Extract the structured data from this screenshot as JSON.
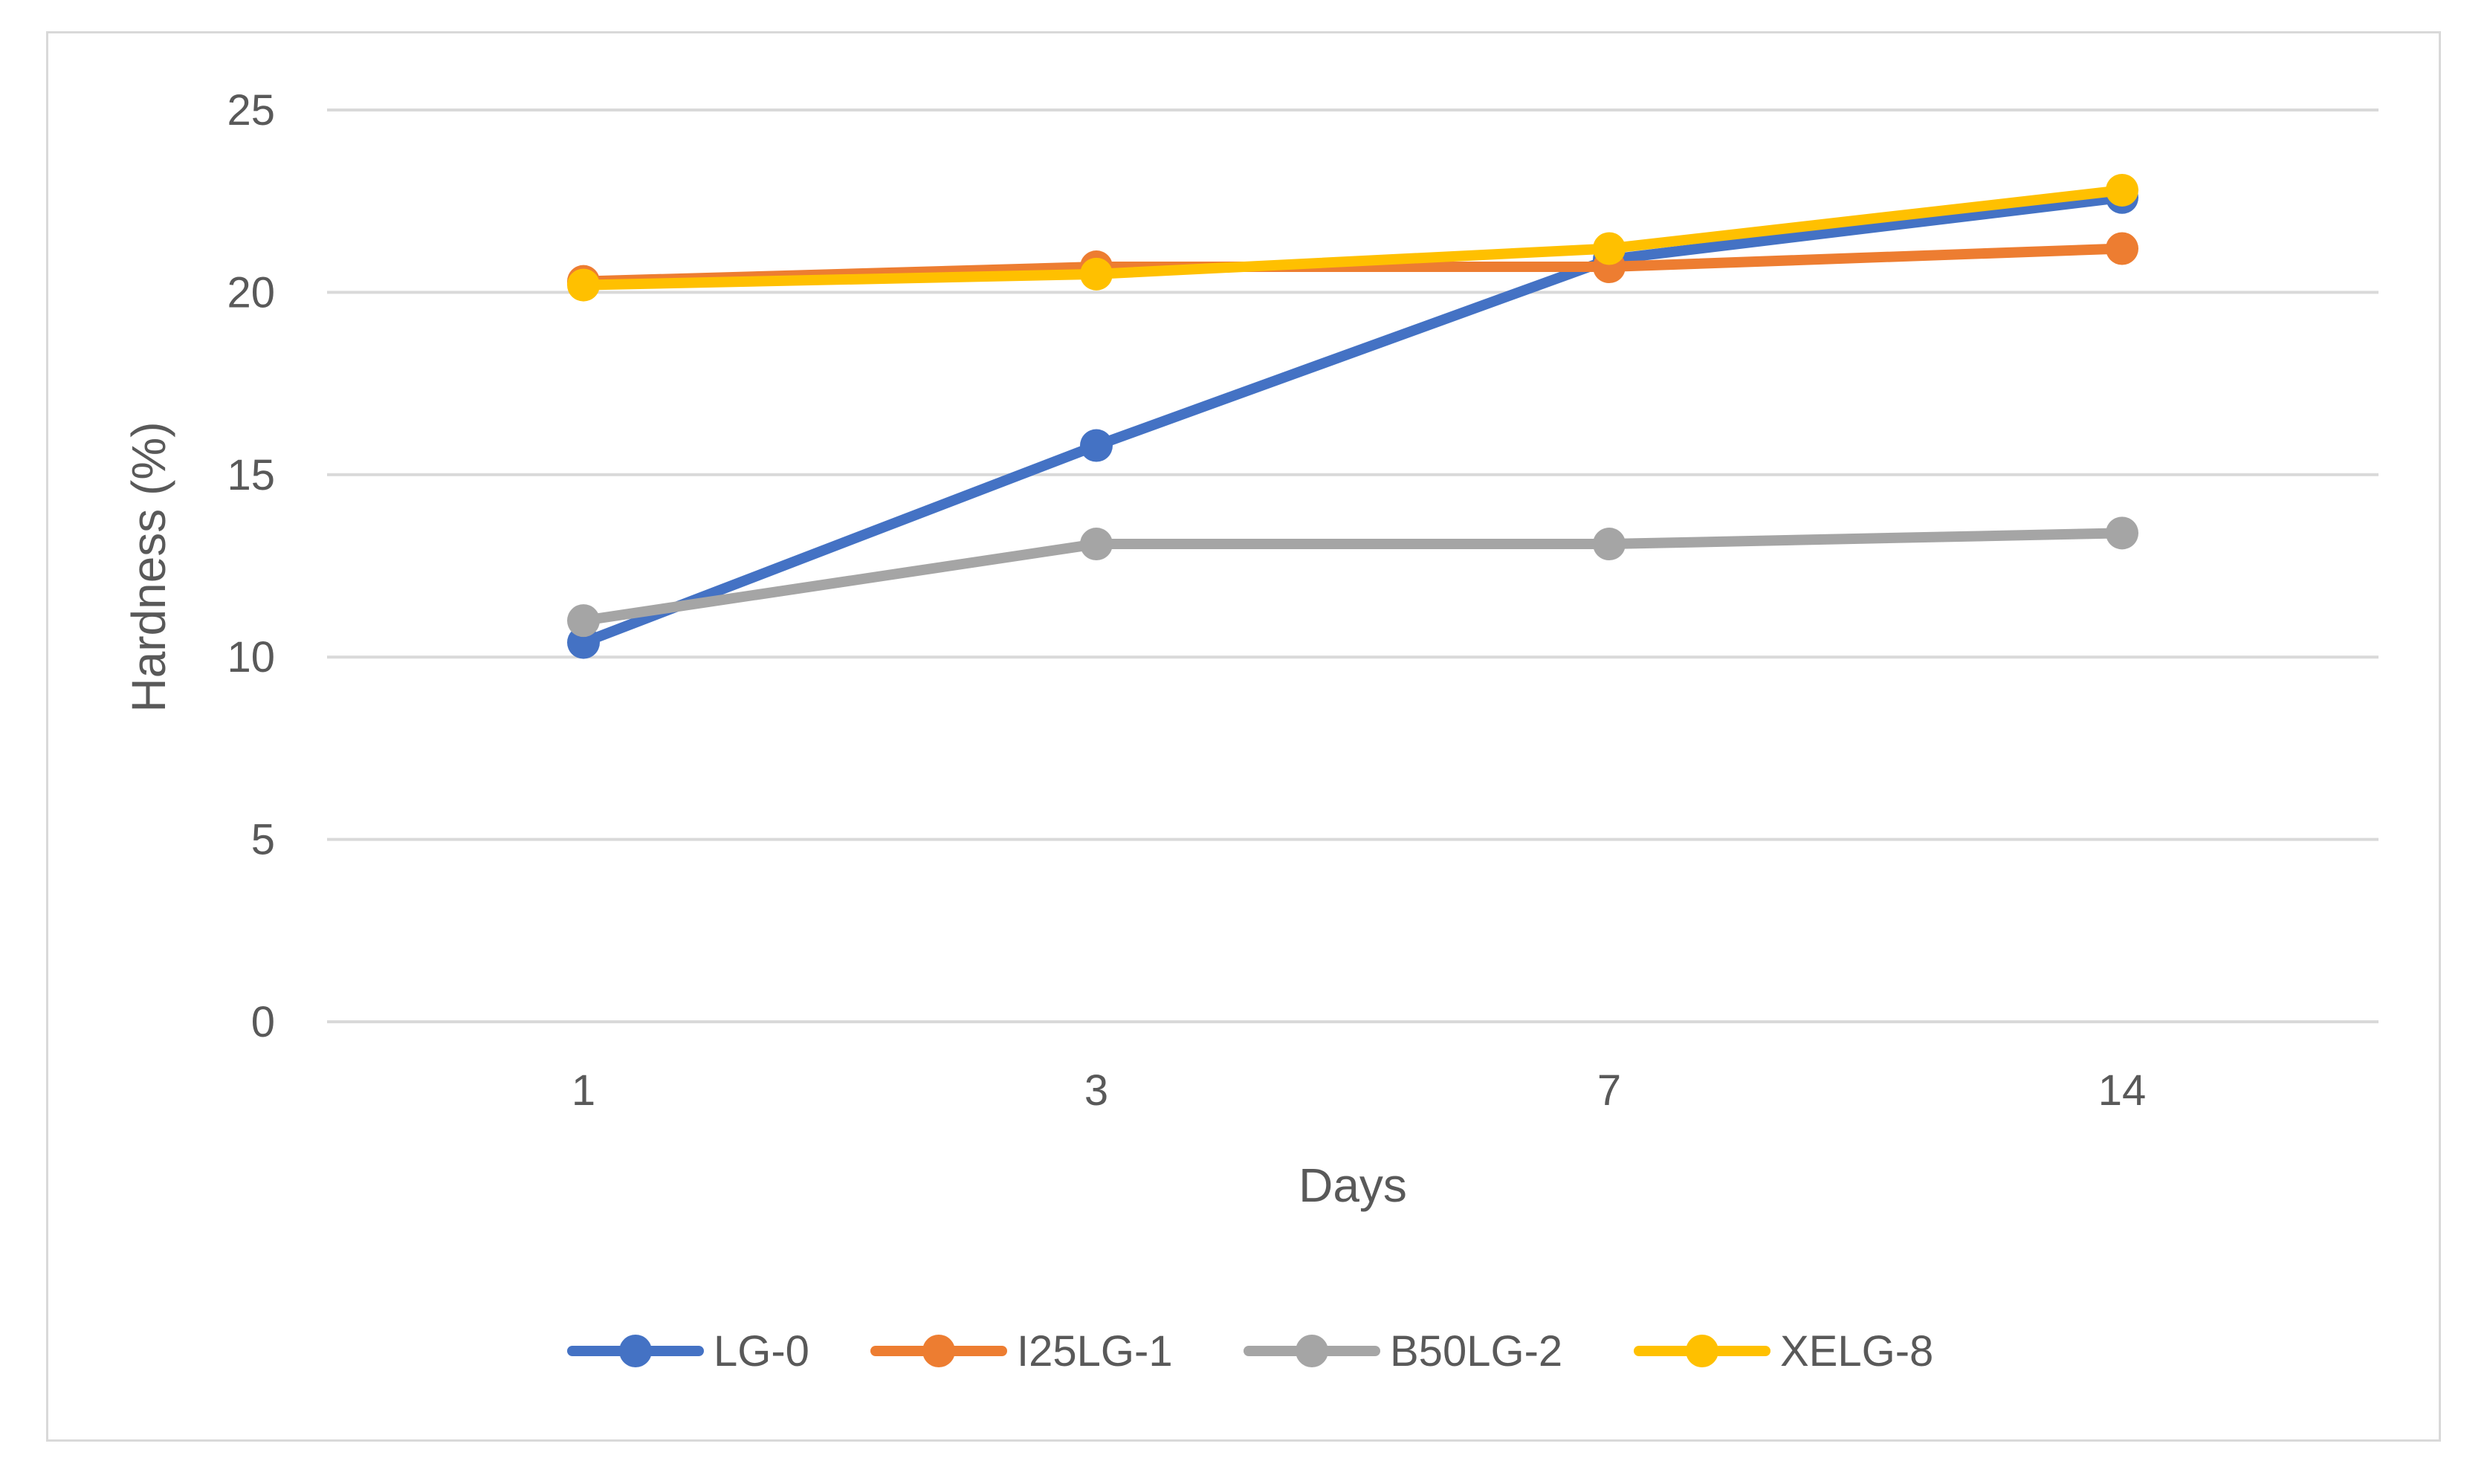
{
  "chart_data": {
    "type": "line",
    "title": "",
    "xlabel": "Days",
    "ylabel": "Hardness (%)",
    "categories": [
      "1",
      "3",
      "7",
      "14"
    ],
    "ylim": [
      0,
      25
    ],
    "yticks": [
      0,
      5,
      10,
      15,
      20,
      25
    ],
    "grid": "horizontal",
    "legend_position": "bottom",
    "series": [
      {
        "name": "LG-0",
        "color": "#4472C4",
        "values": [
          10.4,
          15.8,
          20.9,
          22.6
        ]
      },
      {
        "name": "I25LG-1",
        "color": "#ED7D31",
        "values": [
          20.3,
          20.7,
          20.7,
          21.2
        ]
      },
      {
        "name": "B50LG-2",
        "color": "#A5A5A5",
        "values": [
          11.0,
          13.1,
          13.1,
          13.4
        ]
      },
      {
        "name": "XELG-8",
        "color": "#FFC000",
        "values": [
          20.2,
          20.5,
          21.2,
          22.8
        ]
      }
    ]
  }
}
